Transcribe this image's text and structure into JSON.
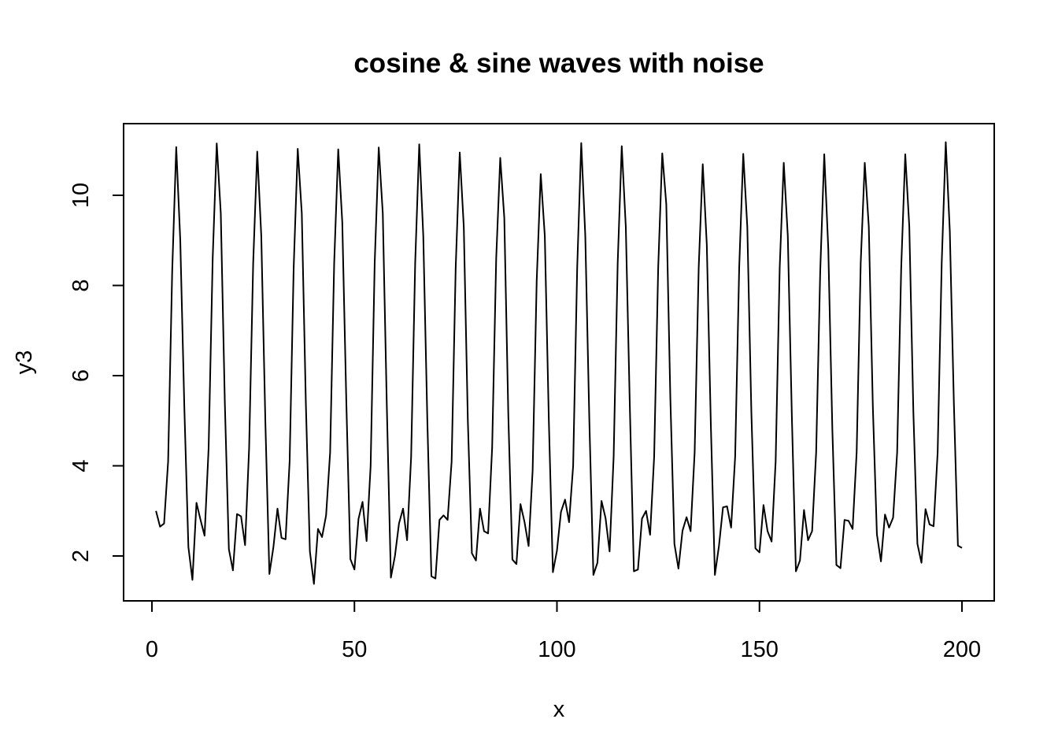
{
  "chart_data": {
    "type": "line",
    "title": "cosine & sine waves with noise",
    "xlabel": "x",
    "ylabel": "y3",
    "xlim": [
      1,
      200
    ],
    "ylim": [
      1.35,
      11.2
    ],
    "grid": false,
    "x_ticks": [
      0,
      50,
      100,
      150,
      200
    ],
    "y_ticks": [
      2,
      4,
      6,
      8,
      10
    ],
    "series": [
      {
        "color": "#000000",
        "x": [
          1,
          2,
          3,
          4,
          5,
          6,
          7,
          8,
          9,
          10,
          11,
          12,
          13,
          14,
          15,
          16,
          17,
          18,
          19,
          20,
          21,
          22,
          23,
          24,
          25,
          26,
          27,
          28,
          29,
          30,
          31,
          32,
          33,
          34,
          35,
          36,
          37,
          38,
          39,
          40,
          41,
          42,
          43,
          44,
          45,
          46,
          47,
          48,
          49,
          50,
          51,
          52,
          53,
          54,
          55,
          56,
          57,
          58,
          59,
          60,
          61,
          62,
          63,
          64,
          65,
          66,
          67,
          68,
          69,
          70,
          71,
          72,
          73,
          74,
          75,
          76,
          77,
          78,
          79,
          80,
          81,
          82,
          83,
          84,
          85,
          86,
          87,
          88,
          89,
          90,
          91,
          92,
          93,
          94,
          95,
          96,
          97,
          98,
          99,
          100,
          101,
          102,
          103,
          104,
          105,
          106,
          107,
          108,
          109,
          110,
          111,
          112,
          113,
          114,
          115,
          116,
          117,
          118,
          119,
          120,
          121,
          122,
          123,
          124,
          125,
          126,
          127,
          128,
          129,
          130,
          131,
          132,
          133,
          134,
          135,
          136,
          137,
          138,
          139,
          140,
          141,
          142,
          143,
          144,
          145,
          146,
          147,
          148,
          149,
          150,
          151,
          152,
          153,
          154,
          155,
          156,
          157,
          158,
          159,
          160,
          161,
          162,
          163,
          164,
          165,
          166,
          167,
          168,
          169,
          170,
          171,
          172,
          173,
          174,
          175,
          176,
          177,
          178,
          179,
          180,
          181,
          182,
          183,
          184,
          185,
          186,
          187,
          188,
          189,
          190,
          191,
          192,
          193,
          194,
          195,
          196,
          197,
          198,
          199,
          200
        ],
        "values": [
          3.0,
          2.65,
          2.72,
          4.1,
          8.3,
          11.07,
          9.0,
          5.3,
          2.2,
          1.47,
          3.18,
          2.8,
          2.45,
          4.4,
          8.6,
          11.15,
          9.6,
          5.4,
          2.15,
          1.68,
          2.93,
          2.88,
          2.24,
          4.4,
          8.5,
          10.97,
          9.1,
          5.0,
          1.6,
          2.2,
          3.05,
          2.4,
          2.37,
          4.1,
          8.4,
          11.03,
          9.6,
          5.4,
          2.1,
          1.38,
          2.6,
          2.42,
          2.9,
          4.3,
          8.5,
          11.02,
          9.4,
          5.4,
          1.93,
          1.7,
          2.82,
          3.2,
          2.33,
          4.0,
          8.5,
          11.06,
          9.6,
          5.3,
          1.52,
          2.0,
          2.72,
          3.05,
          2.35,
          4.2,
          8.5,
          11.13,
          9.1,
          5.0,
          1.55,
          1.5,
          2.8,
          2.9,
          2.8,
          4.1,
          8.4,
          10.95,
          9.3,
          5.0,
          2.06,
          1.9,
          3.05,
          2.55,
          2.5,
          4.4,
          8.6,
          10.83,
          9.5,
          5.1,
          1.92,
          1.82,
          3.15,
          2.75,
          2.22,
          3.9,
          8.1,
          10.47,
          9.1,
          5.0,
          1.64,
          2.12,
          2.98,
          3.25,
          2.75,
          4.0,
          8.4,
          11.16,
          9.1,
          5.0,
          1.58,
          1.85,
          3.22,
          2.84,
          2.1,
          4.2,
          8.5,
          11.09,
          9.3,
          5.3,
          1.66,
          1.7,
          2.83,
          3.0,
          2.47,
          4.2,
          8.4,
          10.93,
          9.8,
          5.5,
          2.27,
          1.72,
          2.56,
          2.86,
          2.55,
          4.3,
          8.4,
          10.69,
          8.9,
          4.9,
          1.58,
          2.22,
          3.08,
          3.1,
          2.63,
          4.2,
          8.4,
          10.92,
          9.3,
          5.2,
          2.17,
          2.08,
          3.13,
          2.55,
          2.32,
          4.1,
          8.4,
          10.72,
          9.1,
          5.1,
          1.66,
          1.9,
          3.02,
          2.35,
          2.55,
          4.3,
          8.3,
          10.91,
          8.8,
          4.8,
          1.8,
          1.73,
          2.8,
          2.78,
          2.6,
          4.3,
          8.5,
          10.72,
          9.3,
          5.3,
          2.48,
          1.88,
          2.92,
          2.63,
          2.85,
          4.3,
          8.4,
          10.91,
          9.3,
          5.2,
          2.27,
          1.85,
          3.04,
          2.7,
          2.66,
          4.3,
          8.5,
          11.18,
          9.2,
          5.4,
          2.23,
          2.18
        ]
      }
    ]
  }
}
